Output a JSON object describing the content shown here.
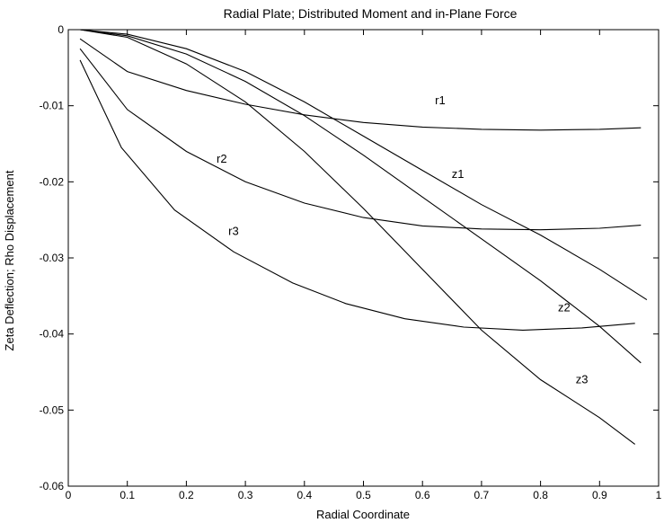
{
  "chart_data": {
    "type": "line",
    "title": "Radial Plate; Distributed Moment and in-Plane Force",
    "xlabel": "Radial Coordinate",
    "ylabel": "Zeta Deflection; Rho Displacement",
    "xlim": [
      0,
      1
    ],
    "ylim": [
      -0.06,
      0
    ],
    "xticks": [
      0,
      0.1,
      0.2,
      0.3,
      0.4,
      0.5,
      0.6,
      0.7,
      0.8,
      0.9,
      1
    ],
    "xtick_labels": [
      "0",
      "0.1",
      "0.2",
      "0.3",
      "0.4",
      "0.5",
      "0.6",
      "0.7",
      "0.8",
      "0.9",
      "1"
    ],
    "yticks": [
      0,
      -0.01,
      -0.02,
      -0.03,
      -0.04,
      -0.05,
      -0.06
    ],
    "ytick_labels": [
      "0",
      "-0.01",
      "-0.02",
      "-0.03",
      "-0.04",
      "-0.05",
      "-0.06"
    ],
    "grid": false,
    "legend": "none",
    "series": [
      {
        "name": "r1",
        "x": [
          0.02,
          0.1,
          0.2,
          0.3,
          0.4,
          0.5,
          0.6,
          0.7,
          0.8,
          0.9,
          0.97
        ],
        "y": [
          -0.0012,
          -0.0055,
          -0.008,
          -0.0098,
          -0.0112,
          -0.0122,
          -0.0128,
          -0.0131,
          -0.0132,
          -0.0131,
          -0.0129
        ],
        "label_at": [
          0.63,
          -0.0098
        ]
      },
      {
        "name": "r2",
        "x": [
          0.02,
          0.1,
          0.2,
          0.3,
          0.4,
          0.5,
          0.6,
          0.7,
          0.8,
          0.9,
          0.97
        ],
        "y": [
          -0.0025,
          -0.0105,
          -0.016,
          -0.02,
          -0.0228,
          -0.0247,
          -0.0258,
          -0.0262,
          -0.0263,
          -0.0261,
          -0.0257
        ],
        "label_at": [
          0.26,
          -0.0175
        ]
      },
      {
        "name": "r3",
        "x": [
          0.02,
          0.09,
          0.18,
          0.28,
          0.38,
          0.47,
          0.57,
          0.67,
          0.77,
          0.87,
          0.96
        ],
        "y": [
          -0.004,
          -0.0155,
          -0.0237,
          -0.0292,
          -0.0333,
          -0.036,
          -0.038,
          -0.0391,
          -0.0395,
          -0.0392,
          -0.0386
        ],
        "label_at": [
          0.28,
          -0.027
        ]
      },
      {
        "name": "z1",
        "x": [
          0.02,
          0.1,
          0.2,
          0.3,
          0.4,
          0.5,
          0.6,
          0.7,
          0.8,
          0.9,
          0.98
        ],
        "y": [
          0,
          -0.0006,
          -0.0025,
          -0.0055,
          -0.0095,
          -0.014,
          -0.0185,
          -0.023,
          -0.027,
          -0.0315,
          -0.0355
        ],
        "label_at": [
          0.66,
          -0.0195
        ]
      },
      {
        "name": "z2",
        "x": [
          0.02,
          0.1,
          0.2,
          0.3,
          0.4,
          0.5,
          0.6,
          0.7,
          0.8,
          0.9,
          0.97
        ],
        "y": [
          0,
          -0.0008,
          -0.0032,
          -0.0068,
          -0.0113,
          -0.0165,
          -0.022,
          -0.0275,
          -0.033,
          -0.039,
          -0.0438
        ],
        "label_at": [
          0.84,
          -0.037
        ]
      },
      {
        "name": "z3",
        "x": [
          0.02,
          0.1,
          0.2,
          0.3,
          0.4,
          0.5,
          0.6,
          0.7,
          0.8,
          0.9,
          0.96
        ],
        "y": [
          0,
          -0.001,
          -0.0045,
          -0.0095,
          -0.016,
          -0.0235,
          -0.0315,
          -0.0395,
          -0.046,
          -0.051,
          -0.0545
        ],
        "label_at": [
          0.87,
          -0.0465
        ]
      }
    ]
  }
}
